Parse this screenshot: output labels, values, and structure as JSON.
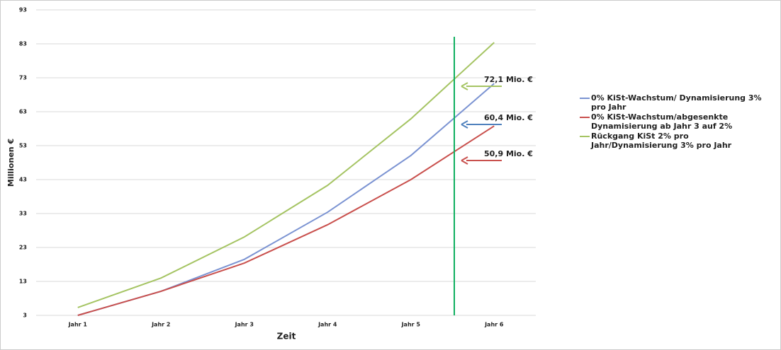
{
  "chart_data": {
    "type": "line",
    "x_label": "Zeit",
    "y_label": "Millionen €",
    "categories": [
      "Jahr 1",
      "Jahr 2",
      "Jahr 3",
      "Jahr 4",
      "Jahr 5",
      "Jahr 6"
    ],
    "series": [
      {
        "name": "0% KiSt-Wachstum/ Dynamisierung 3% pro Jahr",
        "color": "#7b93d2",
        "values": [
          3,
          10.1,
          19.5,
          33.4,
          50.1,
          71.3
        ]
      },
      {
        "name": "0% KiSt-Wachstum/abgesenkte Dynamisierung ab Jahr 3 auf 2%",
        "color": "#c9504d",
        "values": [
          3,
          10.1,
          18.4,
          29.7,
          43,
          58.8
        ]
      },
      {
        "name": "Rückgang KiSt 2% pro Jahr/Dynamisierung 3% pro Jahr",
        "color": "#a5c463",
        "values": [
          5.3,
          14,
          26.1,
          41.3,
          60.9,
          83.4
        ]
      }
    ],
    "ylim": [
      3,
      93
    ],
    "yticks": [
      3,
      13,
      23,
      33,
      43,
      53,
      63,
      73,
      83,
      93
    ],
    "grid": true,
    "annotations": [
      {
        "text": "72,1 Mio. €",
        "color": "#a5c463"
      },
      {
        "text": "60,4 Mio. €",
        "color": "#4f81bd"
      },
      {
        "text": "50,9 Mio. €",
        "color": "#c9504d"
      }
    ]
  }
}
